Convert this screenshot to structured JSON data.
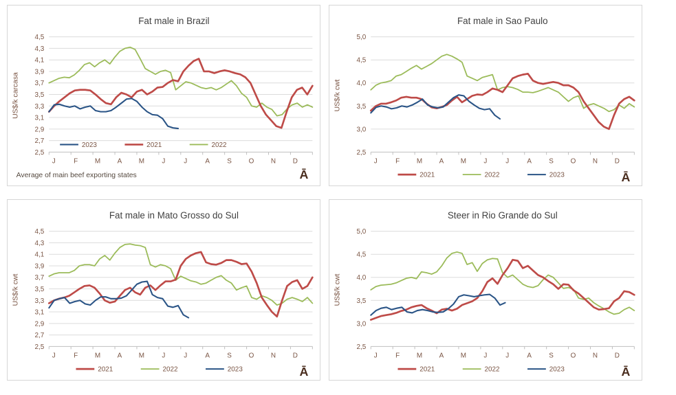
{
  "glyph": "Ā",
  "colors": {
    "s2021": "#be4b48",
    "s2022": "#9bbb59",
    "s2023": "#2a5486",
    "grid": "#dcdcdc",
    "axis_line": "#bfbfbf",
    "axis_text": "#7a5544",
    "title_text": "#404040",
    "glyph_color": "#4a2d1e"
  },
  "chart_data": [
    {
      "type": "line",
      "title": "Fat male in Brazil",
      "ylabel": "US$/k carcasa",
      "xlabel": "",
      "footnote": "Average  of main beef exporting states",
      "ylim": [
        2.5,
        4.5
      ],
      "ytick_labels": [
        "4,5",
        "4,3",
        "4,1",
        "3,9",
        "3,7",
        "3,5",
        "3,3",
        "3,1",
        "2,9",
        "2,7",
        "2,5"
      ],
      "x_labels": [
        "J",
        "F",
        "M",
        "A",
        "M",
        "J",
        "J",
        "A",
        "S",
        "O",
        "N",
        "D"
      ],
      "grid": true,
      "legend_position": "inside",
      "legend": [
        "2023",
        "2021",
        "2022"
      ],
      "series": [
        {
          "name": "2023",
          "color_key": "s2023",
          "partial": true,
          "values": [
            3.2,
            3.32,
            3.33,
            3.3,
            3.28,
            3.3,
            3.25,
            3.28,
            3.3,
            3.22,
            3.2,
            3.2,
            3.22,
            3.28,
            3.35,
            3.42,
            3.43,
            3.38,
            3.28,
            3.2,
            3.15,
            3.14,
            3.08,
            2.95,
            2.92,
            2.91
          ]
        },
        {
          "name": "2021",
          "color_key": "s2021",
          "partial": false,
          "values": [
            3.2,
            3.3,
            3.38,
            3.45,
            3.52,
            3.57,
            3.58,
            3.58,
            3.57,
            3.5,
            3.42,
            3.35,
            3.33,
            3.45,
            3.53,
            3.5,
            3.45,
            3.55,
            3.58,
            3.5,
            3.55,
            3.62,
            3.63,
            3.7,
            3.75,
            3.73,
            3.9,
            4.0,
            4.08,
            4.12,
            3.9,
            3.9,
            3.87,
            3.9,
            3.92,
            3.9,
            3.87,
            3.85,
            3.8,
            3.7,
            3.5,
            3.3,
            3.15,
            3.05,
            2.95,
            2.92,
            3.2,
            3.45,
            3.58,
            3.62,
            3.5,
            3.65
          ]
        },
        {
          "name": "2022",
          "color_key": "s2022",
          "partial": false,
          "values": [
            3.7,
            3.74,
            3.78,
            3.8,
            3.79,
            3.84,
            3.92,
            4.02,
            4.05,
            3.98,
            4.05,
            4.1,
            4.03,
            4.15,
            4.25,
            4.3,
            4.32,
            4.28,
            4.12,
            3.95,
            3.9,
            3.85,
            3.9,
            3.92,
            3.88,
            3.58,
            3.65,
            3.72,
            3.7,
            3.66,
            3.62,
            3.6,
            3.62,
            3.58,
            3.62,
            3.68,
            3.74,
            3.65,
            3.52,
            3.45,
            3.3,
            3.28,
            3.35,
            3.28,
            3.24,
            3.13,
            3.15,
            3.25,
            3.32,
            3.35,
            3.28,
            3.32,
            3.28
          ]
        }
      ]
    },
    {
      "type": "line",
      "title": "Fat male in Sao Paulo",
      "ylabel": "US$/k cwt",
      "xlabel": "",
      "ylim": [
        2.5,
        5.0
      ],
      "ytick_labels": [
        "5,0",
        "4,5",
        "4,0",
        "3,5",
        "3,0",
        "2,5"
      ],
      "x_labels": [
        "J",
        "F",
        "M",
        "A",
        "M",
        "J",
        "J",
        "A",
        "S",
        "O",
        "N",
        "D"
      ],
      "grid": true,
      "legend_position": "bottom",
      "legend": [
        "2021",
        "2022",
        "2023"
      ],
      "series": [
        {
          "name": "2021",
          "color_key": "s2021",
          "partial": false,
          "values": [
            3.4,
            3.5,
            3.55,
            3.55,
            3.58,
            3.62,
            3.68,
            3.7,
            3.68,
            3.68,
            3.65,
            3.55,
            3.47,
            3.45,
            3.48,
            3.52,
            3.62,
            3.7,
            3.58,
            3.65,
            3.72,
            3.75,
            3.74,
            3.8,
            3.88,
            3.85,
            3.8,
            3.95,
            4.1,
            4.15,
            4.18,
            4.2,
            4.05,
            4.0,
            3.98,
            4.0,
            4.02,
            4.0,
            3.95,
            3.95,
            3.9,
            3.8,
            3.6,
            3.45,
            3.3,
            3.15,
            3.05,
            3.0,
            3.3,
            3.55,
            3.65,
            3.7,
            3.62
          ]
        },
        {
          "name": "2022",
          "color_key": "s2022",
          "partial": false,
          "values": [
            3.85,
            3.95,
            4.0,
            4.02,
            4.05,
            4.15,
            4.18,
            4.25,
            4.32,
            4.38,
            4.3,
            4.36,
            4.42,
            4.5,
            4.58,
            4.62,
            4.58,
            4.52,
            4.45,
            4.15,
            4.1,
            4.05,
            4.12,
            4.15,
            4.18,
            3.85,
            3.9,
            3.92,
            3.9,
            3.86,
            3.8,
            3.8,
            3.79,
            3.82,
            3.86,
            3.9,
            3.85,
            3.8,
            3.7,
            3.6,
            3.68,
            3.72,
            3.45,
            3.52,
            3.55,
            3.5,
            3.45,
            3.38,
            3.42,
            3.52,
            3.45,
            3.55,
            3.48
          ]
        },
        {
          "name": "2023",
          "color_key": "s2023",
          "partial": true,
          "values": [
            3.35,
            3.47,
            3.5,
            3.48,
            3.44,
            3.46,
            3.5,
            3.48,
            3.52,
            3.58,
            3.65,
            3.52,
            3.48,
            3.46,
            3.48,
            3.58,
            3.68,
            3.74,
            3.72,
            3.6,
            3.52,
            3.45,
            3.42,
            3.44,
            3.3,
            3.22
          ]
        }
      ]
    },
    {
      "type": "line",
      "title": "Fat male in Mato Grosso do Sul",
      "ylabel": "US$/k cwt",
      "xlabel": "",
      "ylim": [
        2.5,
        4.5
      ],
      "ytick_labels": [
        "4,5",
        "4,3",
        "4,1",
        "3,9",
        "3,7",
        "3,5",
        "3,3",
        "3,1",
        "2,9",
        "2,7",
        "2,5"
      ],
      "x_labels": [
        "J",
        "F",
        "M",
        "A",
        "M",
        "J",
        "J",
        "A",
        "S",
        "O",
        "N",
        "D"
      ],
      "grid": true,
      "legend_position": "bottom",
      "legend": [
        "2021",
        "2022",
        "2023"
      ],
      "series": [
        {
          "name": "2021",
          "color_key": "s2021",
          "partial": false,
          "values": [
            3.25,
            3.3,
            3.33,
            3.35,
            3.38,
            3.44,
            3.5,
            3.55,
            3.56,
            3.52,
            3.42,
            3.3,
            3.26,
            3.28,
            3.38,
            3.48,
            3.52,
            3.44,
            3.4,
            3.52,
            3.56,
            3.48,
            3.56,
            3.63,
            3.63,
            3.66,
            3.9,
            4.02,
            4.08,
            4.12,
            4.14,
            3.96,
            3.93,
            3.92,
            3.95,
            4.0,
            4.0,
            3.97,
            3.93,
            3.94,
            3.8,
            3.6,
            3.35,
            3.22,
            3.1,
            3.02,
            3.3,
            3.55,
            3.62,
            3.65,
            3.5,
            3.55,
            3.7
          ]
        },
        {
          "name": "2022",
          "color_key": "s2022",
          "partial": false,
          "values": [
            3.72,
            3.76,
            3.78,
            3.78,
            3.78,
            3.82,
            3.9,
            3.92,
            3.92,
            3.9,
            4.02,
            4.08,
            4.0,
            4.12,
            4.22,
            4.27,
            4.28,
            4.26,
            4.25,
            4.22,
            3.92,
            3.88,
            3.92,
            3.9,
            3.85,
            3.65,
            3.72,
            3.68,
            3.64,
            3.62,
            3.58,
            3.6,
            3.65,
            3.7,
            3.73,
            3.65,
            3.6,
            3.48,
            3.52,
            3.55,
            3.35,
            3.32,
            3.38,
            3.35,
            3.3,
            3.22,
            3.25,
            3.32,
            3.35,
            3.32,
            3.28,
            3.35,
            3.25
          ]
        },
        {
          "name": "2023",
          "color_key": "s2023",
          "partial": true,
          "values": [
            3.17,
            3.3,
            3.33,
            3.35,
            3.25,
            3.28,
            3.3,
            3.24,
            3.22,
            3.3,
            3.36,
            3.36,
            3.33,
            3.33,
            3.34,
            3.38,
            3.48,
            3.58,
            3.62,
            3.63,
            3.4,
            3.35,
            3.33,
            3.2,
            3.18,
            3.21,
            3.05,
            3.0
          ]
        }
      ]
    },
    {
      "type": "line",
      "title": "Steer  in Rio Grande do Sul",
      "ylabel": "US$/k cwt",
      "xlabel": "",
      "ylim": [
        2.5,
        5.0
      ],
      "ytick_labels": [
        "5,0",
        "4,5",
        "4,0",
        "3,5",
        "3,0",
        "2,5"
      ],
      "x_labels": [
        "J",
        "F",
        "M",
        "A",
        "M",
        "J",
        "J",
        "A",
        "S",
        "O",
        "N",
        "D"
      ],
      "grid": true,
      "legend_position": "bottom",
      "legend": [
        "2021",
        "2022",
        "2023"
      ],
      "series": [
        {
          "name": "2021",
          "color_key": "s2021",
          "partial": false,
          "values": [
            3.08,
            3.12,
            3.16,
            3.18,
            3.2,
            3.23,
            3.27,
            3.3,
            3.35,
            3.38,
            3.4,
            3.33,
            3.28,
            3.22,
            3.3,
            3.32,
            3.28,
            3.32,
            3.4,
            3.44,
            3.48,
            3.55,
            3.7,
            3.9,
            3.98,
            3.86,
            4.05,
            4.2,
            4.38,
            4.36,
            4.2,
            4.25,
            4.15,
            4.05,
            4.0,
            3.92,
            3.85,
            3.75,
            3.85,
            3.84,
            3.72,
            3.65,
            3.55,
            3.45,
            3.35,
            3.3,
            3.31,
            3.33,
            3.48,
            3.55,
            3.7,
            3.68,
            3.62
          ]
        },
        {
          "name": "2022",
          "color_key": "s2022",
          "partial": false,
          "values": [
            3.73,
            3.8,
            3.83,
            3.84,
            3.85,
            3.88,
            3.93,
            3.98,
            4.0,
            3.97,
            4.12,
            4.1,
            4.07,
            4.12,
            4.25,
            4.42,
            4.52,
            4.55,
            4.52,
            4.28,
            4.32,
            4.13,
            4.3,
            4.38,
            4.41,
            4.4,
            4.1,
            4.0,
            4.05,
            3.95,
            3.85,
            3.8,
            3.78,
            3.82,
            3.95,
            4.05,
            4.0,
            3.88,
            3.76,
            3.78,
            3.74,
            3.55,
            3.52,
            3.55,
            3.45,
            3.38,
            3.32,
            3.25,
            3.2,
            3.22,
            3.3,
            3.35,
            3.28
          ]
        },
        {
          "name": "2023",
          "color_key": "s2023",
          "partial": true,
          "values": [
            3.18,
            3.28,
            3.33,
            3.35,
            3.3,
            3.33,
            3.35,
            3.25,
            3.23,
            3.28,
            3.3,
            3.28,
            3.25,
            3.24,
            3.25,
            3.32,
            3.42,
            3.58,
            3.62,
            3.6,
            3.58,
            3.6,
            3.62,
            3.63,
            3.55,
            3.4,
            3.45
          ]
        }
      ]
    }
  ]
}
